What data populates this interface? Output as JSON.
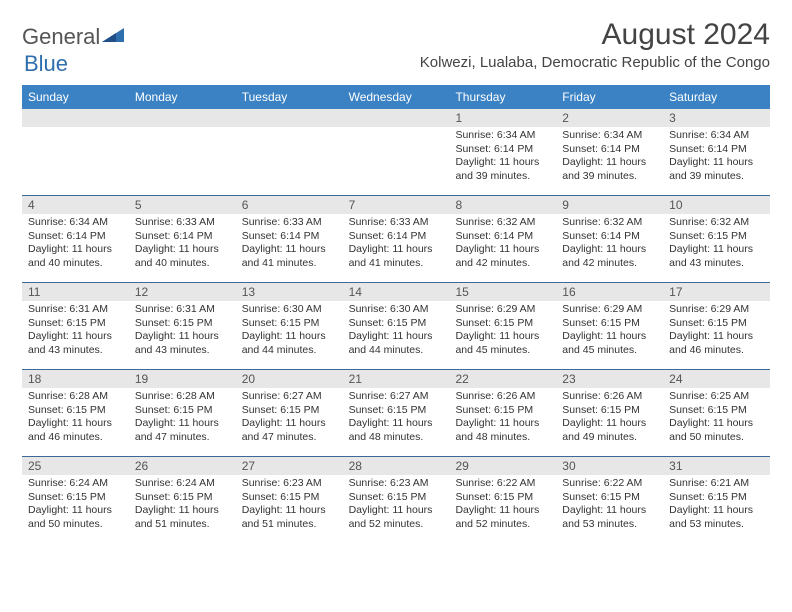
{
  "brand": {
    "part1": "General",
    "part2": "Blue"
  },
  "title": "August 2024",
  "location": "Kolwezi, Lualaba, Democratic Republic of the Congo",
  "colors": {
    "header_bg": "#3b82c4",
    "header_text": "#ffffff",
    "week_border": "#3b6a9a",
    "daynum_bg": "#e7e7e7",
    "body_text": "#333333"
  },
  "day_names": [
    "Sunday",
    "Monday",
    "Tuesday",
    "Wednesday",
    "Thursday",
    "Friday",
    "Saturday"
  ],
  "weeks": [
    [
      {
        "n": "",
        "sr": "",
        "ss": "",
        "dl": ""
      },
      {
        "n": "",
        "sr": "",
        "ss": "",
        "dl": ""
      },
      {
        "n": "",
        "sr": "",
        "ss": "",
        "dl": ""
      },
      {
        "n": "",
        "sr": "",
        "ss": "",
        "dl": ""
      },
      {
        "n": "1",
        "sr": "Sunrise: 6:34 AM",
        "ss": "Sunset: 6:14 PM",
        "dl": "Daylight: 11 hours and 39 minutes."
      },
      {
        "n": "2",
        "sr": "Sunrise: 6:34 AM",
        "ss": "Sunset: 6:14 PM",
        "dl": "Daylight: 11 hours and 39 minutes."
      },
      {
        "n": "3",
        "sr": "Sunrise: 6:34 AM",
        "ss": "Sunset: 6:14 PM",
        "dl": "Daylight: 11 hours and 39 minutes."
      }
    ],
    [
      {
        "n": "4",
        "sr": "Sunrise: 6:34 AM",
        "ss": "Sunset: 6:14 PM",
        "dl": "Daylight: 11 hours and 40 minutes."
      },
      {
        "n": "5",
        "sr": "Sunrise: 6:33 AM",
        "ss": "Sunset: 6:14 PM",
        "dl": "Daylight: 11 hours and 40 minutes."
      },
      {
        "n": "6",
        "sr": "Sunrise: 6:33 AM",
        "ss": "Sunset: 6:14 PM",
        "dl": "Daylight: 11 hours and 41 minutes."
      },
      {
        "n": "7",
        "sr": "Sunrise: 6:33 AM",
        "ss": "Sunset: 6:14 PM",
        "dl": "Daylight: 11 hours and 41 minutes."
      },
      {
        "n": "8",
        "sr": "Sunrise: 6:32 AM",
        "ss": "Sunset: 6:14 PM",
        "dl": "Daylight: 11 hours and 42 minutes."
      },
      {
        "n": "9",
        "sr": "Sunrise: 6:32 AM",
        "ss": "Sunset: 6:14 PM",
        "dl": "Daylight: 11 hours and 42 minutes."
      },
      {
        "n": "10",
        "sr": "Sunrise: 6:32 AM",
        "ss": "Sunset: 6:15 PM",
        "dl": "Daylight: 11 hours and 43 minutes."
      }
    ],
    [
      {
        "n": "11",
        "sr": "Sunrise: 6:31 AM",
        "ss": "Sunset: 6:15 PM",
        "dl": "Daylight: 11 hours and 43 minutes."
      },
      {
        "n": "12",
        "sr": "Sunrise: 6:31 AM",
        "ss": "Sunset: 6:15 PM",
        "dl": "Daylight: 11 hours and 43 minutes."
      },
      {
        "n": "13",
        "sr": "Sunrise: 6:30 AM",
        "ss": "Sunset: 6:15 PM",
        "dl": "Daylight: 11 hours and 44 minutes."
      },
      {
        "n": "14",
        "sr": "Sunrise: 6:30 AM",
        "ss": "Sunset: 6:15 PM",
        "dl": "Daylight: 11 hours and 44 minutes."
      },
      {
        "n": "15",
        "sr": "Sunrise: 6:29 AM",
        "ss": "Sunset: 6:15 PM",
        "dl": "Daylight: 11 hours and 45 minutes."
      },
      {
        "n": "16",
        "sr": "Sunrise: 6:29 AM",
        "ss": "Sunset: 6:15 PM",
        "dl": "Daylight: 11 hours and 45 minutes."
      },
      {
        "n": "17",
        "sr": "Sunrise: 6:29 AM",
        "ss": "Sunset: 6:15 PM",
        "dl": "Daylight: 11 hours and 46 minutes."
      }
    ],
    [
      {
        "n": "18",
        "sr": "Sunrise: 6:28 AM",
        "ss": "Sunset: 6:15 PM",
        "dl": "Daylight: 11 hours and 46 minutes."
      },
      {
        "n": "19",
        "sr": "Sunrise: 6:28 AM",
        "ss": "Sunset: 6:15 PM",
        "dl": "Daylight: 11 hours and 47 minutes."
      },
      {
        "n": "20",
        "sr": "Sunrise: 6:27 AM",
        "ss": "Sunset: 6:15 PM",
        "dl": "Daylight: 11 hours and 47 minutes."
      },
      {
        "n": "21",
        "sr": "Sunrise: 6:27 AM",
        "ss": "Sunset: 6:15 PM",
        "dl": "Daylight: 11 hours and 48 minutes."
      },
      {
        "n": "22",
        "sr": "Sunrise: 6:26 AM",
        "ss": "Sunset: 6:15 PM",
        "dl": "Daylight: 11 hours and 48 minutes."
      },
      {
        "n": "23",
        "sr": "Sunrise: 6:26 AM",
        "ss": "Sunset: 6:15 PM",
        "dl": "Daylight: 11 hours and 49 minutes."
      },
      {
        "n": "24",
        "sr": "Sunrise: 6:25 AM",
        "ss": "Sunset: 6:15 PM",
        "dl": "Daylight: 11 hours and 50 minutes."
      }
    ],
    [
      {
        "n": "25",
        "sr": "Sunrise: 6:24 AM",
        "ss": "Sunset: 6:15 PM",
        "dl": "Daylight: 11 hours and 50 minutes."
      },
      {
        "n": "26",
        "sr": "Sunrise: 6:24 AM",
        "ss": "Sunset: 6:15 PM",
        "dl": "Daylight: 11 hours and 51 minutes."
      },
      {
        "n": "27",
        "sr": "Sunrise: 6:23 AM",
        "ss": "Sunset: 6:15 PM",
        "dl": "Daylight: 11 hours and 51 minutes."
      },
      {
        "n": "28",
        "sr": "Sunrise: 6:23 AM",
        "ss": "Sunset: 6:15 PM",
        "dl": "Daylight: 11 hours and 52 minutes."
      },
      {
        "n": "29",
        "sr": "Sunrise: 6:22 AM",
        "ss": "Sunset: 6:15 PM",
        "dl": "Daylight: 11 hours and 52 minutes."
      },
      {
        "n": "30",
        "sr": "Sunrise: 6:22 AM",
        "ss": "Sunset: 6:15 PM",
        "dl": "Daylight: 11 hours and 53 minutes."
      },
      {
        "n": "31",
        "sr": "Sunrise: 6:21 AM",
        "ss": "Sunset: 6:15 PM",
        "dl": "Daylight: 11 hours and 53 minutes."
      }
    ]
  ]
}
